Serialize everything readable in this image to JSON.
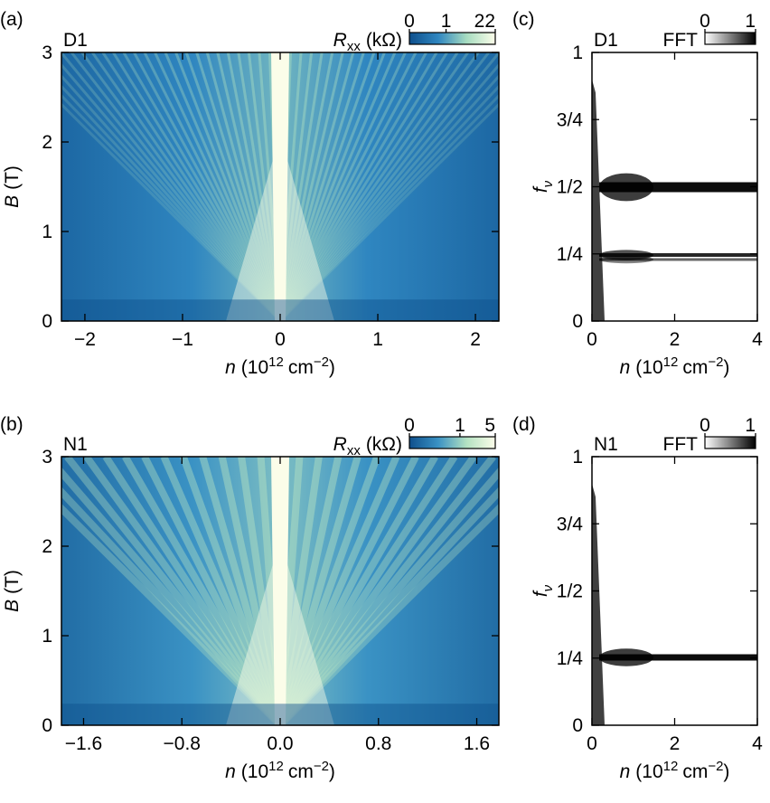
{
  "chart_data": [
    {
      "type": "heatmap",
      "panel": "(a)",
      "sample": "D1",
      "colorbar": {
        "symbol": "R",
        "subscript": "xx",
        "unit": "(kΩ)",
        "lim": [
          0,
          22
        ],
        "ticks": [
          0,
          1,
          22
        ],
        "scale": "symlog",
        "colors": [
          "#0e4f8c",
          "#2f86c0",
          "#a7dcc0",
          "#fbfde9"
        ]
      },
      "xlabel": {
        "symbol": "n",
        "open": "(10",
        "exponent": "12",
        "unit": "cm",
        "unit_exponent": "−2",
        "close": ")"
      },
      "ylabel": {
        "symbol": "B",
        "unit": "(T)"
      },
      "xlim": [
        -2.24,
        2.24
      ],
      "xticks": [
        {
          "value": -2,
          "label": "−2"
        },
        {
          "value": -1,
          "label": "−1"
        },
        0,
        1,
        2
      ],
      "ylim": [
        0,
        3
      ],
      "yticks": [
        0,
        1,
        2,
        3
      ]
    },
    {
      "type": "heatmap",
      "panel": "(b)",
      "sample": "N1",
      "colorbar": {
        "symbol": "R",
        "subscript": "xx",
        "unit": "(kΩ)",
        "lim": [
          0,
          5
        ],
        "ticks": [
          0,
          1,
          5
        ],
        "scale": "symlog",
        "colors": [
          "#0e4f8c",
          "#3a92c4",
          "#b4e2c2",
          "#fbfde9"
        ]
      },
      "xlabel": {
        "symbol": "n",
        "open": "(10",
        "exponent": "12",
        "unit": "cm",
        "unit_exponent": "−2",
        "close": ")"
      },
      "ylabel": {
        "symbol": "B",
        "unit": "(T)"
      },
      "xlim": [
        -1.78,
        1.78
      ],
      "xticks": [
        {
          "value": -1.6,
          "label": "−1.6"
        },
        {
          "value": -0.8,
          "label": "−0.8"
        },
        {
          "value": 0,
          "label": "0.0"
        },
        0.8,
        1.6
      ],
      "ylim": [
        0,
        3
      ],
      "yticks": [
        0,
        1,
        2,
        3
      ]
    },
    {
      "type": "fft",
      "panel": "(c)",
      "sample": "D1",
      "colorbar": {
        "label": "FFT",
        "lim": [
          0,
          1
        ],
        "ticks": [
          0,
          1
        ],
        "scale": "linear",
        "colors": [
          "#ffffff",
          "#000000"
        ]
      },
      "xlabel": {
        "symbol": "n",
        "open": "(10",
        "exponent": "12",
        "unit": "cm",
        "unit_exponent": "−2",
        "close": ")"
      },
      "ylabel": {
        "symbol": "f",
        "subscript": "ν"
      },
      "xlim": [
        0,
        4
      ],
      "xticks": [
        0,
        2,
        4
      ],
      "ylim": [
        0,
        1
      ],
      "yticks": [
        0,
        {
          "value": 0.25,
          "label": "1/4"
        },
        {
          "value": 0.5,
          "label": "1/2"
        },
        {
          "value": 0.75,
          "label": "3/4"
        },
        1
      ]
    },
    {
      "type": "fft",
      "panel": "(d)",
      "sample": "N1",
      "colorbar": {
        "label": "FFT",
        "lim": [
          0,
          1
        ],
        "ticks": [
          0,
          1
        ],
        "scale": "linear",
        "colors": [
          "#ffffff",
          "#000000"
        ]
      },
      "xlabel": {
        "symbol": "n",
        "open": "(10",
        "exponent": "12",
        "unit": "cm",
        "unit_exponent": "−2",
        "close": ")"
      },
      "ylabel": {
        "symbol": "f",
        "subscript": "ν"
      },
      "xlim": [
        0,
        4
      ],
      "xticks": [
        0,
        2,
        4
      ],
      "ylim": [
        0,
        1
      ],
      "yticks": [
        0,
        {
          "value": 0.25,
          "label": "1/4"
        },
        {
          "value": 0.5,
          "label": "1/2"
        },
        {
          "value": 0.75,
          "label": "3/4"
        },
        1
      ]
    }
  ]
}
